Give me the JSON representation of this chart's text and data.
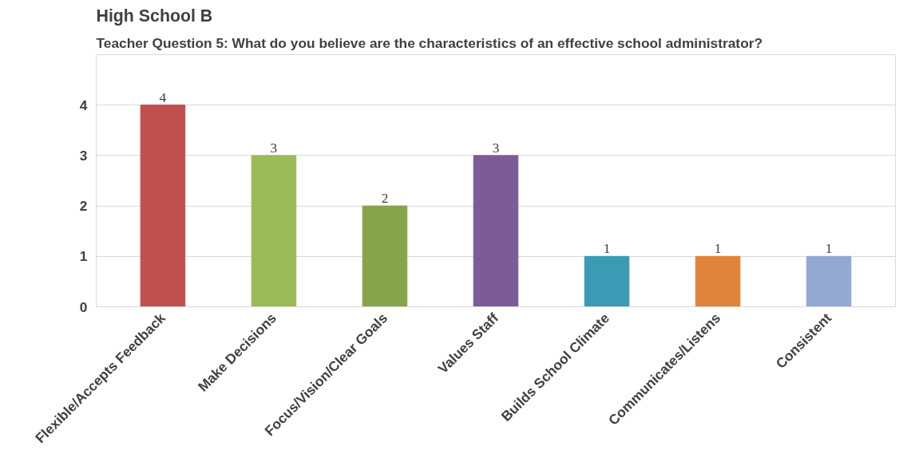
{
  "chart_data": {
    "type": "bar",
    "title": "High School B",
    "subtitle": "Teacher Question 5: What do you believe are the characteristics of an effective school administrator?",
    "categories": [
      "Flexible/Accepts Feedback",
      "Make Decisions",
      "Focus/Vision/Clear Goals",
      "Values Staff",
      "Builds School Climate",
      "Communicates/Listens",
      "Consistent"
    ],
    "values": [
      4,
      3,
      2,
      3,
      1,
      1,
      1
    ],
    "colors": [
      "#c0504d",
      "#9bbb59",
      "#86a44a",
      "#7b5c96",
      "#3c9bb4",
      "#e0843c",
      "#93a9d1"
    ],
    "ylim": [
      0,
      5
    ],
    "yticks": [
      0,
      1,
      2,
      3,
      4
    ],
    "grid": "y",
    "data_labels": true
  }
}
